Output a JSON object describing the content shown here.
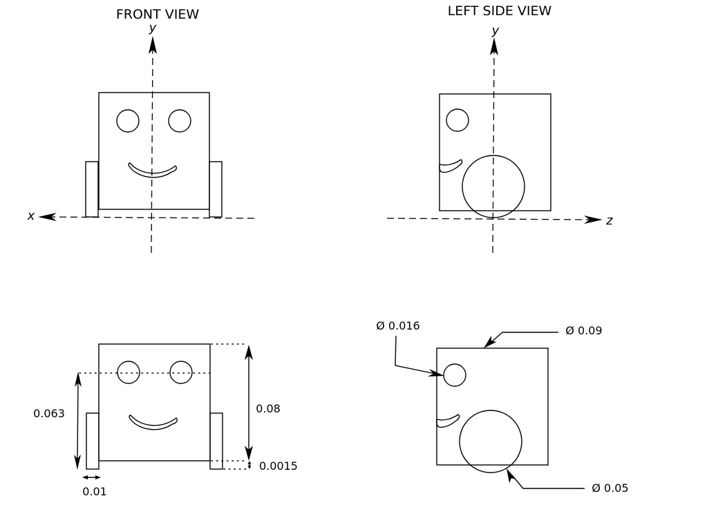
{
  "front_view": {
    "title": "FRONT VIEW",
    "axis_y_label": "y",
    "axis_x_label": "x"
  },
  "side_view": {
    "title": "LEFT SIDE VIEW",
    "axis_y_label": "y",
    "axis_z_label": "z"
  },
  "front_dimensions": {
    "eye_height": "0.063",
    "body_height": "0.08",
    "foot_offset": "0.0015",
    "foot_width": "0.01"
  },
  "side_dimensions": {
    "eye_diameter": "Ø 0.016",
    "body_diameter": "Ø 0.09",
    "wheel_diameter": "Ø 0.05"
  }
}
